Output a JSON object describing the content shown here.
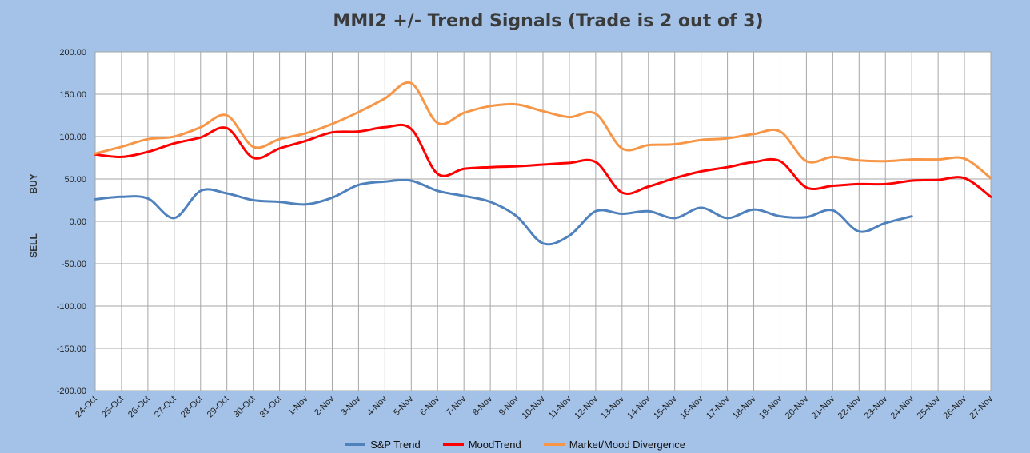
{
  "chart_data": {
    "type": "line",
    "title": "MMI2 +/- Trend Signals (Trade is 2 out of 3)",
    "ylabel_top": "BUY",
    "ylabel_bottom": "SELL",
    "ylim": [
      -200,
      200
    ],
    "yticks": [
      "200.00",
      "150.00",
      "100.00",
      "50.00",
      "0.00",
      "-50.00",
      "-100.00",
      "-150.00",
      "-200.00"
    ],
    "ytick_values": [
      200,
      150,
      100,
      50,
      0,
      -50,
      -100,
      -150,
      -200
    ],
    "grid": true,
    "legend_position": "bottom",
    "categories": [
      "24-Oct",
      "25-Oct",
      "26-Oct",
      "27-Oct",
      "28-Oct",
      "29-Oct",
      "30-Oct",
      "31-Oct",
      "1-Nov",
      "2-Nov",
      "3-Nov",
      "4-Nov",
      "5-Nov",
      "6-Nov",
      "7-Nov",
      "8-Nov",
      "9-Nov",
      "10-Nov",
      "11-Nov",
      "12-Nov",
      "13-Nov",
      "14-Nov",
      "15-Nov",
      "16-Nov",
      "17-Nov",
      "18-Nov",
      "19-Nov",
      "20-Nov",
      "21-Nov",
      "22-Nov",
      "23-Nov",
      "24-Nov",
      "25-Nov",
      "26-Nov",
      "27-Nov"
    ],
    "series": [
      {
        "name": "S&P Trend",
        "color": "#4f81bd",
        "values": [
          26,
          29,
          27,
          4,
          36,
          33,
          25,
          23,
          20,
          28,
          43,
          47,
          48,
          36,
          30,
          23,
          6,
          -26,
          -17,
          12,
          9,
          12,
          4,
          16,
          4,
          14,
          6,
          5,
          13,
          -12,
          -2,
          6,
          null,
          null,
          null
        ]
      },
      {
        "name": "MoodTrend",
        "color": "#ff0000",
        "values": [
          79,
          76,
          82,
          92,
          99,
          110,
          75,
          86,
          95,
          105,
          106,
          111,
          109,
          56,
          62,
          64,
          65,
          67,
          69,
          70,
          34,
          41,
          51,
          59,
          64,
          70,
          71,
          40,
          42,
          44,
          44,
          48,
          49,
          51,
          29
        ]
      },
      {
        "name": "Market/Mood Divergence",
        "color": "#f79646",
        "values": [
          80,
          88,
          97,
          100,
          111,
          125,
          88,
          97,
          104,
          115,
          129,
          145,
          163,
          116,
          128,
          136,
          138,
          130,
          123,
          127,
          86,
          90,
          91,
          96,
          98,
          103,
          106,
          71,
          76,
          72,
          71,
          73,
          73,
          74,
          51
        ]
      }
    ]
  }
}
